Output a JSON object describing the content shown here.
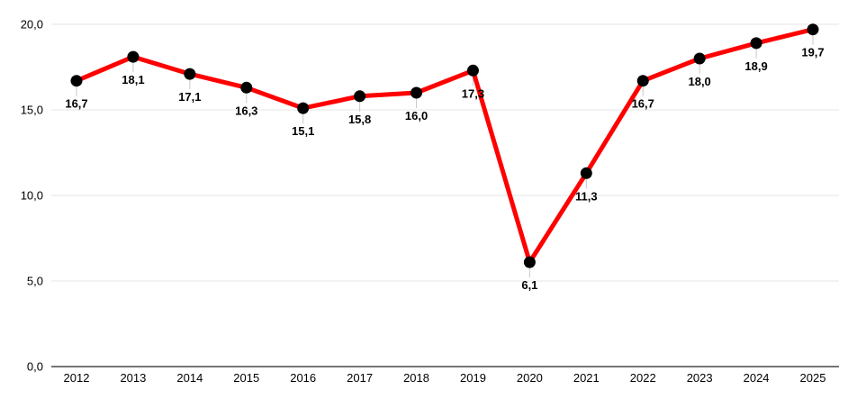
{
  "chart_data": {
    "type": "line",
    "categories": [
      "2012",
      "2013",
      "2014",
      "2015",
      "2016",
      "2017",
      "2018",
      "2019",
      "2020",
      "2021",
      "2022",
      "2023",
      "2024",
      "2025"
    ],
    "series": [
      {
        "name": "series-1",
        "values": [
          16.7,
          18.1,
          17.1,
          16.3,
          15.1,
          15.8,
          16.0,
          17.3,
          6.1,
          11.3,
          16.7,
          18.0,
          18.9,
          19.7
        ],
        "point_labels": [
          "16,7",
          "18,1",
          "17,1",
          "16,3",
          "15,1",
          "15,8",
          "16,0",
          "17,3",
          "6,1",
          "11,3",
          "16,7",
          "18,0",
          "18,9",
          "19,7"
        ],
        "line_color": "#ff0000",
        "marker_color": "#000000"
      }
    ],
    "xlabel": "",
    "ylabel": "",
    "ylim": [
      0,
      20
    ],
    "y_ticks": {
      "values": [
        0,
        5,
        10,
        15,
        20
      ],
      "labels": [
        "0,0",
        "5,0",
        "10,0",
        "15,0",
        "20,0"
      ]
    },
    "grid": "horizontal",
    "legend_position": "none",
    "colors": {
      "gridline": "#e6e6e6",
      "axis_line": "#757575",
      "leader_line": "#c8c8c8",
      "tick_text": "#000000",
      "data_label_text": "#000000",
      "background": "#ffffff"
    }
  }
}
